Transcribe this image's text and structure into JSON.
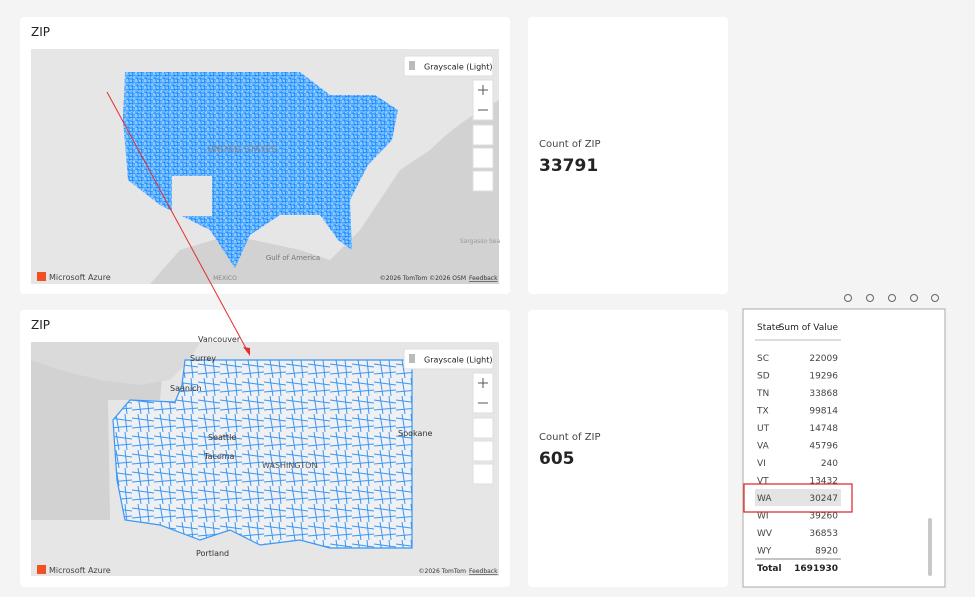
{
  "maps": [
    {
      "title": "ZIP",
      "style_button": "Grayscale (Light)",
      "brand": "Microsoft Azure",
      "attribution": "©2026 TomTom ©2026 OSM",
      "feedback": "Feedback",
      "labels": [
        "UNITED STATES",
        "MEXICO",
        "Gulf of America",
        "Sargasso Sea"
      ]
    },
    {
      "title": "ZIP",
      "style_button": "Grayscale (Light)",
      "brand": "Microsoft Azure",
      "attribution": "©2026 TomTom",
      "feedback": "Feedback",
      "labels": [
        "Vancouver",
        "Surrey",
        "Saanich",
        "Seattle",
        "Tacoma",
        "WASHINGTON",
        "Spokane",
        "Portland"
      ]
    }
  ],
  "cards": [
    {
      "label": "Count of ZIP",
      "value": "33791"
    },
    {
      "label": "Count of ZIP",
      "value": "605"
    }
  ],
  "table": {
    "headers": [
      "State",
      "Sum of Value"
    ],
    "rows": [
      [
        "SC",
        "22009"
      ],
      [
        "SD",
        "19296"
      ],
      [
        "TN",
        "33868"
      ],
      [
        "TX",
        "99814"
      ],
      [
        "UT",
        "14748"
      ],
      [
        "VA",
        "45796"
      ],
      [
        "VI",
        "240"
      ],
      [
        "VT",
        "13432"
      ],
      [
        "WA",
        "30247"
      ],
      [
        "WI",
        "39260"
      ],
      [
        "WV",
        "36853"
      ],
      [
        "WY",
        "8920"
      ]
    ],
    "total": [
      "Total",
      "1691930"
    ]
  }
}
